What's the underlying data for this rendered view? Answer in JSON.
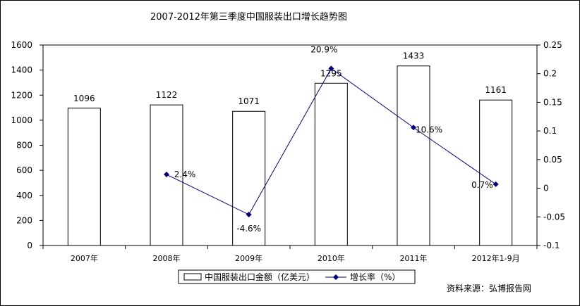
{
  "chart_data": {
    "type": "bar",
    "title": "2007-2012年第三季度中国服装出口增长趋势图",
    "categories": [
      "2007年",
      "2008年",
      "2009年",
      "2010年",
      "2011年",
      "2012年1-9月"
    ],
    "series": [
      {
        "name": "中国服装出口金额（亿美元）",
        "type": "bar",
        "axis": "left",
        "values": [
          1096,
          1122,
          1071,
          1295,
          1433,
          1161
        ],
        "labels": [
          "1096",
          "1122",
          "1071",
          "1295",
          "1433",
          "1161"
        ]
      },
      {
        "name": "增长率（%）",
        "type": "line",
        "axis": "right",
        "values": [
          null,
          0.024,
          -0.046,
          0.209,
          0.106,
          0.007
        ],
        "labels": [
          "",
          "2.4%",
          "-4.6%",
          "20.9%",
          "10.6%",
          "0.7%"
        ]
      }
    ],
    "y_left": {
      "min": 0,
      "max": 1600,
      "ticks": [
        "0",
        "200",
        "400",
        "600",
        "800",
        "1000",
        "1200",
        "1400",
        "1600"
      ]
    },
    "y_right": {
      "min": -0.1,
      "max": 0.25,
      "ticks": [
        "-0.1",
        "-0.05",
        "0",
        "0.05",
        "0.1",
        "0.15",
        "0.2",
        "0.25"
      ]
    },
    "grid": false,
    "legend_position": "bottom",
    "colors": {
      "bar_fill": "#ffffff",
      "bar_stroke": "#000000",
      "line": "#000080",
      "text": "#000000"
    }
  },
  "source_note": "资料来源：弘博报告网"
}
